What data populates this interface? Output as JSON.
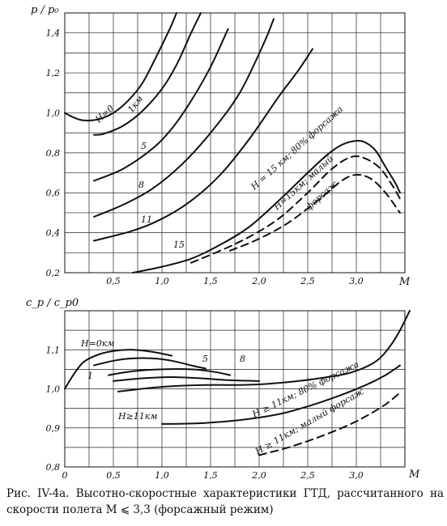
{
  "chart_data": [
    {
      "type": "line",
      "ylabel": "p / p₀",
      "xlabel": "M",
      "xlim": [
        0,
        3.5
      ],
      "ylim": [
        0.2,
        1.5
      ],
      "x_ticks": [
        0.5,
        1.0,
        1.5,
        2.0,
        2.5,
        3.0
      ],
      "x_tick_labels": [
        "0,5",
        "1,0",
        "1,5",
        "2,0",
        "2,5",
        "3,0"
      ],
      "y_ticks": [
        0.2,
        0.4,
        0.6,
        0.8,
        1.0,
        1.2,
        1.4
      ],
      "y_tick_labels": [
        "0,2",
        "0,4",
        "0,6",
        "0,8",
        "1,0",
        "1,2",
        "1,4"
      ],
      "grid": true,
      "series": [
        {
          "style": "solid",
          "points": [
            [
              0,
              1.0
            ],
            [
              0.1,
              0.975
            ],
            [
              0.2,
              0.962
            ],
            [
              0.35,
              0.968
            ],
            [
              0.5,
              1.0
            ],
            [
              0.65,
              1.06
            ],
            [
              0.8,
              1.15
            ],
            [
              0.95,
              1.29
            ],
            [
              1.08,
              1.42
            ],
            [
              1.15,
              1.5
            ]
          ]
        },
        {
          "style": "solid",
          "points": [
            [
              0.3,
              0.89
            ],
            [
              0.4,
              0.895
            ],
            [
              0.6,
              0.935
            ],
            [
              0.8,
              1.01
            ],
            [
              1.0,
              1.12
            ],
            [
              1.15,
              1.24
            ],
            [
              1.3,
              1.4
            ],
            [
              1.4,
              1.5
            ]
          ]
        },
        {
          "style": "solid",
          "points": [
            [
              0.3,
              0.66
            ],
            [
              0.6,
              0.72
            ],
            [
              0.9,
              0.82
            ],
            [
              1.1,
              0.92
            ],
            [
              1.3,
              1.06
            ],
            [
              1.5,
              1.23
            ],
            [
              1.68,
              1.42
            ]
          ]
        },
        {
          "style": "solid",
          "points": [
            [
              0.3,
              0.48
            ],
            [
              0.6,
              0.54
            ],
            [
              0.9,
              0.62
            ],
            [
              1.2,
              0.74
            ],
            [
              1.5,
              0.9
            ],
            [
              1.8,
              1.1
            ],
            [
              2.05,
              1.35
            ],
            [
              2.15,
              1.47
            ]
          ]
        },
        {
          "style": "solid",
          "points": [
            [
              0.3,
              0.36
            ],
            [
              0.7,
              0.41
            ],
            [
              1.0,
              0.47
            ],
            [
              1.3,
              0.56
            ],
            [
              1.6,
              0.69
            ],
            [
              1.9,
              0.87
            ],
            [
              2.2,
              1.08
            ],
            [
              2.4,
              1.21
            ],
            [
              2.55,
              1.32
            ]
          ]
        },
        {
          "style": "solid",
          "points": [
            [
              0.7,
              0.2
            ],
            [
              1.0,
              0.23
            ],
            [
              1.3,
              0.27
            ],
            [
              1.6,
              0.34
            ],
            [
              1.9,
              0.43
            ],
            [
              2.2,
              0.56
            ],
            [
              2.5,
              0.7
            ],
            [
              2.7,
              0.79
            ],
            [
              2.85,
              0.84
            ],
            [
              3.0,
              0.86
            ],
            [
              3.1,
              0.85
            ],
            [
              3.2,
              0.81
            ],
            [
              3.3,
              0.73
            ],
            [
              3.4,
              0.65
            ],
            [
              3.45,
              0.6
            ]
          ]
        },
        {
          "style": "dashed",
          "points": [
            [
              1.3,
              0.25
            ],
            [
              1.6,
              0.31
            ],
            [
              1.9,
              0.38
            ],
            [
              2.2,
              0.47
            ],
            [
              2.5,
              0.6
            ],
            [
              2.75,
              0.72
            ],
            [
              2.95,
              0.78
            ],
            [
              3.1,
              0.77
            ],
            [
              3.25,
              0.72
            ],
            [
              3.38,
              0.63
            ],
            [
              3.45,
              0.57
            ]
          ]
        },
        {
          "style": "dashed",
          "points": [
            [
              1.7,
              0.31
            ],
            [
              2.0,
              0.37
            ],
            [
              2.3,
              0.45
            ],
            [
              2.6,
              0.56
            ],
            [
              2.85,
              0.66
            ],
            [
              3.0,
              0.69
            ],
            [
              3.15,
              0.67
            ],
            [
              3.3,
              0.6
            ],
            [
              3.45,
              0.5
            ]
          ]
        }
      ],
      "annotations": {
        "h0": "H=0",
        "km1": "1км",
        "c5": "5",
        "c8": "8",
        "c11": "11",
        "c15": "15",
        "afterburner80": "H = 15 км; 80% форсажа",
        "low_afterburner_1": "H=15км; малый",
        "low_afterburner_2": "форсаж"
      }
    },
    {
      "type": "line",
      "ylabel": "c_p / c_p0",
      "xlabel": "M",
      "xlim": [
        0,
        3.5
      ],
      "ylim": [
        0.8,
        1.2
      ],
      "x_ticks": [
        0,
        0.5,
        1.0,
        1.5,
        2.0,
        2.5,
        3.0
      ],
      "x_tick_labels": [
        "0",
        "0,5",
        "1,0",
        "1,5",
        "2,0",
        "2,5",
        "3,0"
      ],
      "y_ticks": [
        0.8,
        0.9,
        1.0,
        1.1
      ],
      "y_tick_labels": [
        "0,8",
        "0,9",
        "1,0",
        "1,1"
      ],
      "grid": true,
      "series": [
        {
          "style": "solid",
          "points": [
            [
              0,
              1.0
            ],
            [
              0.1,
              1.04
            ],
            [
              0.2,
              1.07
            ],
            [
              0.35,
              1.088
            ],
            [
              0.5,
              1.097
            ],
            [
              0.7,
              1.1
            ],
            [
              0.9,
              1.095
            ],
            [
              1.1,
              1.085
            ]
          ]
        },
        {
          "style": "solid",
          "points": [
            [
              0.3,
              1.06
            ],
            [
              0.5,
              1.072
            ],
            [
              0.7,
              1.078
            ],
            [
              0.9,
              1.078
            ],
            [
              1.1,
              1.072
            ],
            [
              1.3,
              1.06
            ],
            [
              1.45,
              1.052
            ]
          ]
        },
        {
          "style": "solid",
          "points": [
            [
              0.45,
              1.035
            ],
            [
              0.7,
              1.045
            ],
            [
              1.0,
              1.05
            ],
            [
              1.3,
              1.05
            ],
            [
              1.55,
              1.043
            ],
            [
              1.7,
              1.035
            ]
          ]
        },
        {
          "style": "solid",
          "points": [
            [
              0.5,
              1.02
            ],
            [
              0.8,
              1.027
            ],
            [
              1.1,
              1.03
            ],
            [
              1.4,
              1.027
            ],
            [
              1.7,
              1.022
            ],
            [
              2.0,
              1.02
            ]
          ]
        },
        {
          "style": "solid",
          "points": [
            [
              0.55,
              0.993
            ],
            [
              0.9,
              1.003
            ],
            [
              1.2,
              1.008
            ],
            [
              1.5,
              1.01
            ],
            [
              1.8,
              1.01
            ],
            [
              2.1,
              1.013
            ],
            [
              2.4,
              1.02
            ],
            [
              2.7,
              1.03
            ],
            [
              2.95,
              1.042
            ],
            [
              3.2,
              1.07
            ],
            [
              3.35,
              1.11
            ],
            [
              3.45,
              1.15
            ],
            [
              3.55,
              1.2
            ]
          ]
        },
        {
          "style": "solid",
          "points": [
            [
              1.0,
              0.91
            ],
            [
              1.4,
              0.912
            ],
            [
              1.8,
              0.92
            ],
            [
              2.2,
              0.935
            ],
            [
              2.5,
              0.955
            ],
            [
              2.8,
              0.98
            ],
            [
              3.1,
              1.01
            ],
            [
              3.3,
              1.035
            ],
            [
              3.45,
              1.06
            ]
          ]
        },
        {
          "style": "dashed",
          "points": [
            [
              2.0,
              0.83
            ],
            [
              2.3,
              0.85
            ],
            [
              2.6,
              0.875
            ],
            [
              2.9,
              0.905
            ],
            [
              3.1,
              0.93
            ],
            [
              3.3,
              0.96
            ],
            [
              3.45,
              0.99
            ]
          ]
        }
      ],
      "annotations": {
        "h0": "H=0км",
        "c1": "1",
        "c5": "5",
        "c8": "8",
        "h11": "H≥11км",
        "afterburner80": "H ≥ 11км; 80% форсажа",
        "low_afterburner": "H ≥ 11км; малый форсаж"
      }
    }
  ],
  "caption": "Рис. IV-4а. Высотно-скоростные характеристики ГТД, рассчитанного на скорости полета M ⩽ 3,3 (форсажный режим)"
}
